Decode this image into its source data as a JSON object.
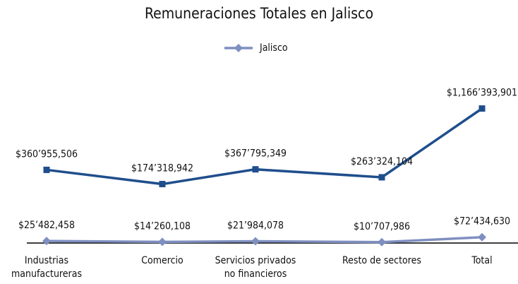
{
  "chart_data": {
    "type": "line",
    "title": "Remuneraciones Totales en Jalisco",
    "categories": [
      [
        "Industrias",
        "manufactureras"
      ],
      [
        "Comercio"
      ],
      [
        "Servicios privados",
        "no financieros"
      ],
      [
        "Resto de  sectores"
      ],
      [
        "Total"
      ]
    ],
    "series": [
      {
        "color": "#1f4e8c",
        "marker": "square",
        "axis": "y2",
        "values": [
          360955506,
          174318942,
          367795349,
          263324104,
          1166393901
        ],
        "value_labels": [
          "$360’955,506",
          "$174’318,942",
          "$367’795,349",
          "$263’324,104",
          "$1,166’393,901"
        ]
      },
      {
        "name": "Jalisco",
        "color": "#7f8fc0",
        "marker": "diamond",
        "values": [
          25482458,
          14260108,
          21984078,
          10707986,
          72434630
        ],
        "value_labels": [
          "$25’482,458",
          "$14’260,108",
          "$21’984,078",
          "$10’707,986",
          "$72’434,630"
        ]
      }
    ],
    "ylim": [
      0,
      1700000000
    ],
    "y2lim": [
      -600000000,
      1200000000
    ],
    "legend": "top"
  }
}
